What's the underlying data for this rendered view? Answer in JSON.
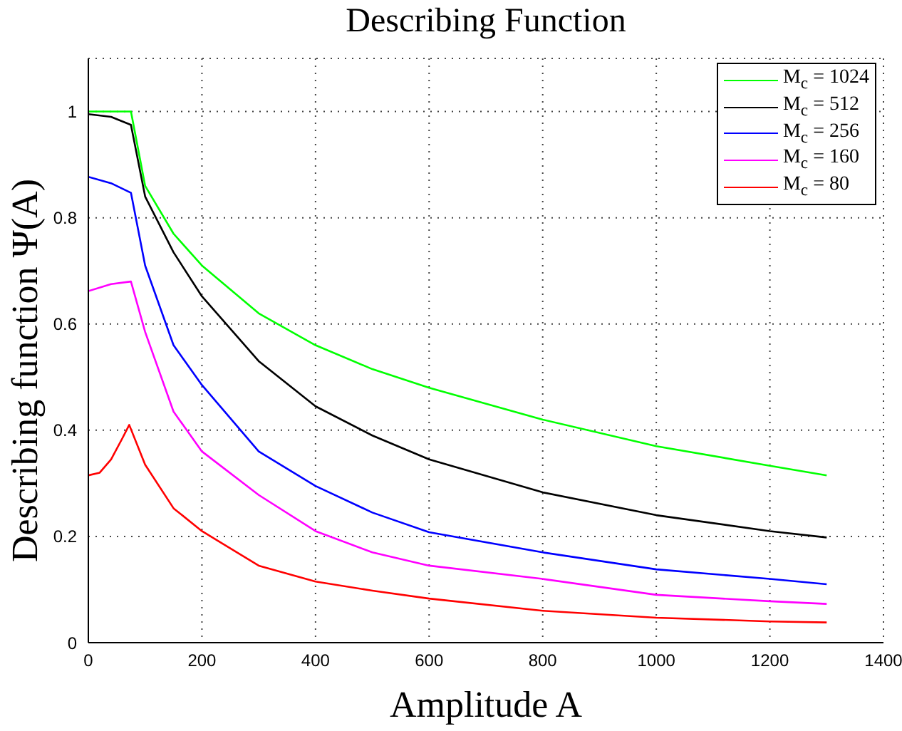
{
  "chart_data": {
    "type": "line",
    "title": "Describing Function",
    "xlabel": "Amplitude A",
    "ylabel": "Describing function Ψ(A)",
    "xlim": [
      0,
      1400
    ],
    "xticks": [
      0,
      200,
      400,
      600,
      800,
      1000,
      1200,
      1400
    ],
    "ylim": [
      0,
      1.1
    ],
    "yticks": [
      0,
      0.2,
      0.4,
      0.6,
      0.8,
      1
    ],
    "grid": true,
    "legend": "top right",
    "marker": "none",
    "line_style": "solid",
    "series": [
      {
        "name": "M$_{c}$ = 1024",
        "color": "#00ff00",
        "x": [
          0,
          75,
          100,
          150,
          200,
          300,
          400,
          500,
          600,
          800,
          1000,
          1200,
          1300
        ],
        "values": [
          1,
          1,
          0.86,
          0.77,
          0.71,
          0.62,
          0.56,
          0.515,
          0.48,
          0.42,
          0.37,
          0.333,
          0.315
        ]
      },
      {
        "name": "M$_{c}$ = 512",
        "color": "#000000",
        "x": [
          0,
          40,
          75,
          100,
          150,
          200,
          300,
          400,
          500,
          600,
          800,
          1000,
          1200,
          1300
        ],
        "values": [
          0.995,
          0.99,
          0.975,
          0.84,
          0.735,
          0.652,
          0.53,
          0.445,
          0.39,
          0.345,
          0.283,
          0.24,
          0.21,
          0.198
        ]
      },
      {
        "name": "M$_{c}$ = 256",
        "color": "#0000ff",
        "x": [
          0,
          40,
          75,
          100,
          150,
          200,
          300,
          400,
          500,
          600,
          800,
          1000,
          1200,
          1300
        ],
        "values": [
          0.877,
          0.865,
          0.847,
          0.71,
          0.56,
          0.485,
          0.36,
          0.295,
          0.245,
          0.208,
          0.17,
          0.138,
          0.12,
          0.11
        ]
      },
      {
        "name": "M$_{c}$ = 160",
        "color": "#ff00ff",
        "x": [
          0,
          40,
          75,
          100,
          150,
          200,
          300,
          400,
          500,
          600,
          800,
          1000,
          1200,
          1300
        ],
        "values": [
          0.662,
          0.675,
          0.68,
          0.585,
          0.435,
          0.36,
          0.278,
          0.21,
          0.17,
          0.145,
          0.12,
          0.09,
          0.078,
          0.073
        ]
      },
      {
        "name": "M$_{c}$ = 80",
        "color": "#ff0000",
        "x": [
          0,
          20,
          40,
          60,
          72,
          100,
          150,
          200,
          300,
          400,
          500,
          600,
          800,
          1000,
          1200,
          1300
        ],
        "values": [
          0.315,
          0.32,
          0.345,
          0.385,
          0.41,
          0.335,
          0.253,
          0.21,
          0.145,
          0.115,
          0.098,
          0.083,
          0.06,
          0.047,
          0.04,
          0.038
        ]
      }
    ]
  }
}
